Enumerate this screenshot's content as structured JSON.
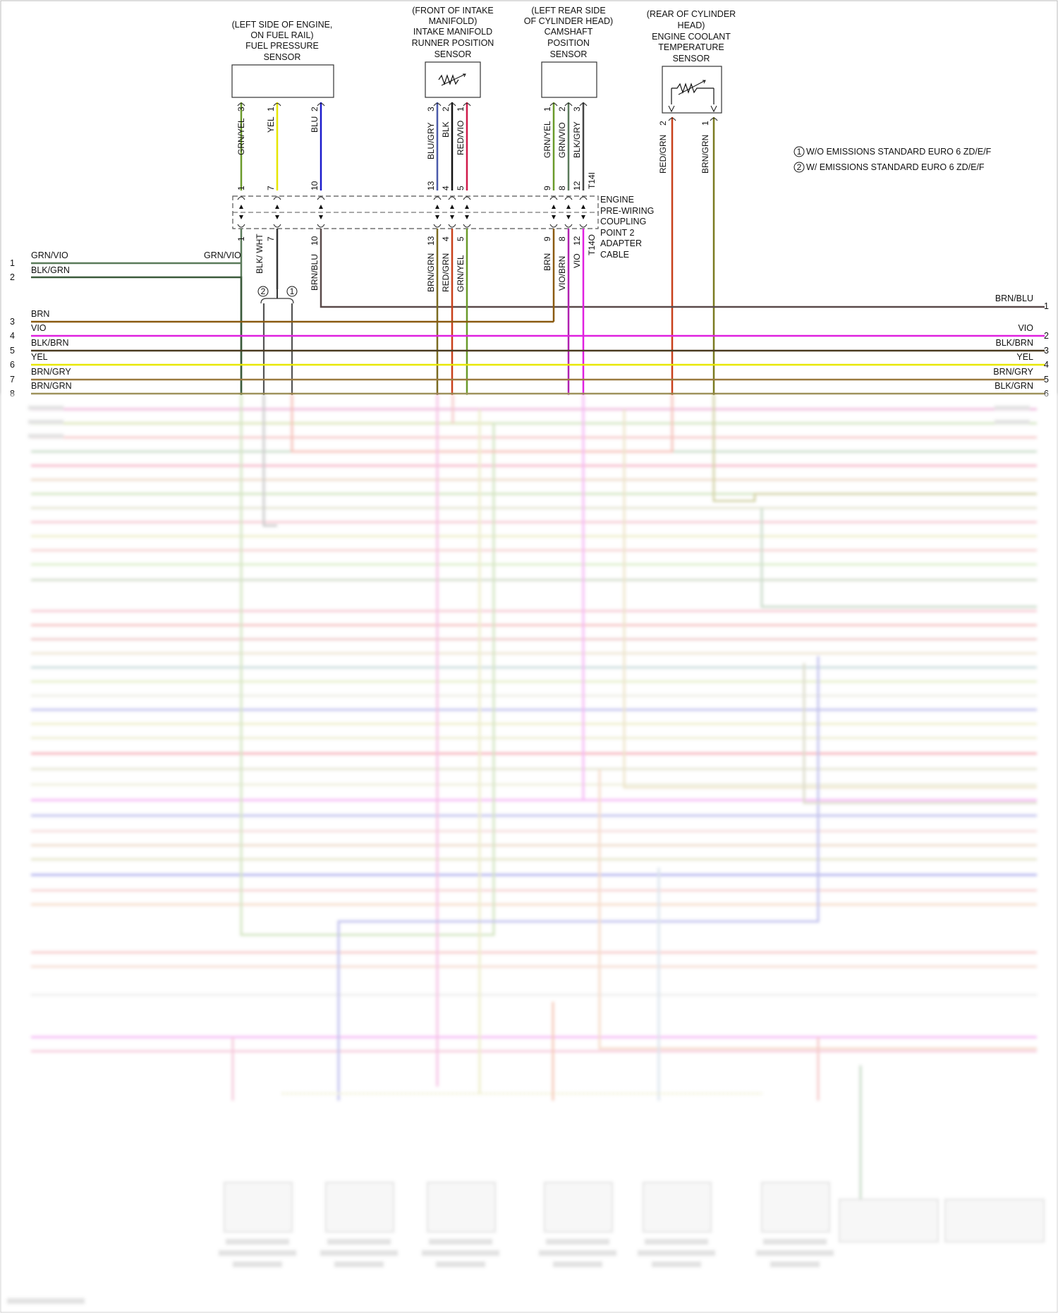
{
  "components": {
    "fuel_pressure": [
      "(LEFT SIDE OF ENGINE,",
      "ON FUEL RAIL)",
      "FUEL PRESSURE",
      "SENSOR"
    ],
    "intake_runner": [
      "(FRONT OF INTAKE",
      "MANIFOLD)",
      "INTAKE MANIFOLD",
      "RUNNER POSITION",
      "SENSOR"
    ],
    "camshaft": [
      "(LEFT REAR SIDE",
      "OF CYLINDER HEAD)",
      "CAMSHAFT",
      "POSITION",
      "SENSOR"
    ],
    "coolant_temp": [
      "(REAR OF CYLINDER",
      "HEAD)",
      "ENGINE COOLANT",
      "TEMPERATURE",
      "SENSOR"
    ]
  },
  "connector_block": [
    "ENGINE",
    "PRE-WIRING",
    "COUPLING",
    "POINT 2",
    "ADAPTER",
    "CABLE"
  ],
  "legend": [
    {
      "num": "1",
      "text": "W/O EMISSIONS STANDARD EURO 6 ZD/E/F"
    },
    {
      "num": "2",
      "text": "W/ EMISSIONS STANDARD EURO 6 ZD/E/F"
    }
  ],
  "upper_wires": {
    "fp": [
      {
        "color": "GRN/YEL",
        "pin_top": "3",
        "pin_mid": "1",
        "hex": "#6a9a2a"
      },
      {
        "color": "YEL",
        "pin_top": "1",
        "pin_mid": "7",
        "hex": "#e6e600"
      },
      {
        "color": "BLU",
        "pin_top": "2",
        "pin_mid": "10",
        "hex": "#1a1acc"
      }
    ],
    "ir": [
      {
        "color": "BLU/GRY",
        "pin_top": "3",
        "pin_mid": "13",
        "hex": "#4a5aaa"
      },
      {
        "color": "BLK",
        "pin_top": "2",
        "pin_mid": "4",
        "hex": "#111111"
      },
      {
        "color": "RED/VIO",
        "pin_top": "1",
        "pin_mid": "5",
        "hex": "#d01a4a"
      }
    ],
    "cam": [
      {
        "color": "GRN/YEL",
        "pin_top": "1",
        "pin_mid": "9",
        "hex": "#6a9a2a"
      },
      {
        "color": "GRN/VIO",
        "pin_top": "2",
        "pin_mid": "8",
        "hex": "#5a7a5a"
      },
      {
        "color": "BLK/GRY",
        "pin_top": "3",
        "pin_mid": "12",
        "hex": "#444444"
      }
    ],
    "cam_extra": "T14I",
    "ect": [
      {
        "color": "RED/GRN",
        "pin_top": "2",
        "hex": "#c8401a"
      },
      {
        "color": "BRN/GRN",
        "pin_top": "1",
        "hex": "#7a7a20"
      }
    ]
  },
  "lower_wires": {
    "fp": [
      {
        "color": "GRN/VIO",
        "pin": "1"
      },
      {
        "color": "BLK/ WHT",
        "pin": "7"
      },
      {
        "color": "BRN/BLU",
        "pin": "10"
      }
    ],
    "ir": [
      {
        "color": "BRN/GRN",
        "pin": "13"
      },
      {
        "color": "RED/GRN",
        "pin": "4"
      },
      {
        "color": "GRN/YEL",
        "pin": "5"
      }
    ],
    "cam": [
      {
        "color": "BRN",
        "pin": "9"
      },
      {
        "color": "VIO/BRN",
        "pin": "8"
      },
      {
        "color": "VIO",
        "pin": "12"
      }
    ],
    "cam_extra": "T14O"
  },
  "left_bus": [
    {
      "num": "1",
      "label": "GRN/VIO"
    },
    {
      "num": "2",
      "label": "BLK/GRN"
    },
    {
      "num": "3",
      "label": "BRN"
    },
    {
      "num": "4",
      "label": "VIO"
    },
    {
      "num": "5",
      "label": "BLK/BRN"
    },
    {
      "num": "6",
      "label": "YEL"
    },
    {
      "num": "7",
      "label": "BRN/GRY"
    },
    {
      "num": "8",
      "label": "BRN/GRN"
    }
  ],
  "left_mid_label": "GRN/VIO",
  "right_bus": [
    {
      "num": "1",
      "label": "BRN/BLU"
    },
    {
      "num": "2",
      "label": "VIO"
    },
    {
      "num": "3",
      "label": "BLK/BRN"
    },
    {
      "num": "4",
      "label": "YEL"
    },
    {
      "num": "5",
      "label": "BRN/GRY"
    },
    {
      "num": "6",
      "label": "BLK/GRN"
    }
  ],
  "option_marks": [
    "2",
    "1"
  ],
  "colors": {
    "grn_vio": "#5a7a5a",
    "blk_grn": "#3a5a3a",
    "brn": "#8a5a10",
    "vio": "#e020e0",
    "blk_brn": "#4a3a20",
    "yel": "#e8e800",
    "brn_gry": "#9a7a40",
    "brn_grn": "#7a6a20",
    "brn_blu": "#5a4a4a"
  }
}
